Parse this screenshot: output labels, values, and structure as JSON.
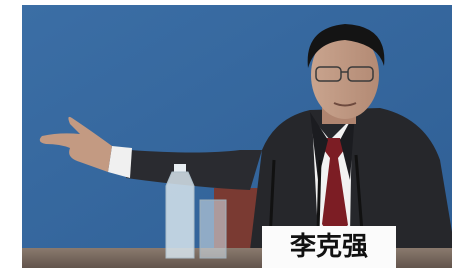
{
  "photo": {
    "name_card": "李克强"
  }
}
